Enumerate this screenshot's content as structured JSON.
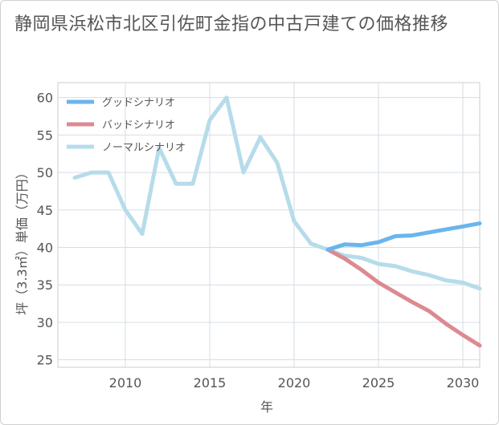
{
  "chart_data": {
    "type": "line",
    "title": "静岡県浜松市北区引佐町金指の中古戸建ての価格推移",
    "xlabel": "年",
    "ylabel": "坪（3.3㎡）単価（万円）",
    "xlim": [
      2006,
      2031
    ],
    "ylim": [
      24,
      62
    ],
    "x_ticks": [
      2010,
      2015,
      2020,
      2025,
      2030
    ],
    "y_ticks": [
      25,
      30,
      35,
      40,
      45,
      50,
      55,
      60
    ],
    "grid": true,
    "legend_position": "top-left",
    "series": [
      {
        "name": "グッドシナリオ",
        "color": "#6bb5ec",
        "x": [
          2022,
          2023,
          2024,
          2025,
          2026,
          2027,
          2028,
          2029,
          2030,
          2031
        ],
        "y": [
          39.7,
          40.4,
          40.3,
          40.7,
          41.5,
          41.6,
          42.0,
          42.4,
          42.8,
          43.2
        ]
      },
      {
        "name": "バッドシナリオ",
        "color": "#dc8a90",
        "x": [
          2022,
          2023,
          2024,
          2025,
          2026,
          2027,
          2028,
          2029,
          2030,
          2031
        ],
        "y": [
          39.7,
          38.5,
          37.0,
          35.3,
          34.0,
          32.7,
          31.5,
          29.8,
          28.3,
          26.9
        ]
      },
      {
        "name": "ノーマルシナリオ",
        "color": "#b6dcea",
        "x": [
          2007,
          2008,
          2009,
          2010,
          2011,
          2012,
          2013,
          2014,
          2015,
          2016,
          2017,
          2018,
          2019,
          2020,
          2021,
          2022,
          2023,
          2024,
          2025,
          2026,
          2027,
          2028,
          2029,
          2030,
          2031
        ],
        "y": [
          49.3,
          50.0,
          50.0,
          45.0,
          41.8,
          53.3,
          48.5,
          48.5,
          57.0,
          60.0,
          50.0,
          54.7,
          51.3,
          43.5,
          40.5,
          39.7,
          38.9,
          38.6,
          37.8,
          37.5,
          36.8,
          36.3,
          35.6,
          35.3,
          34.5
        ]
      }
    ]
  }
}
